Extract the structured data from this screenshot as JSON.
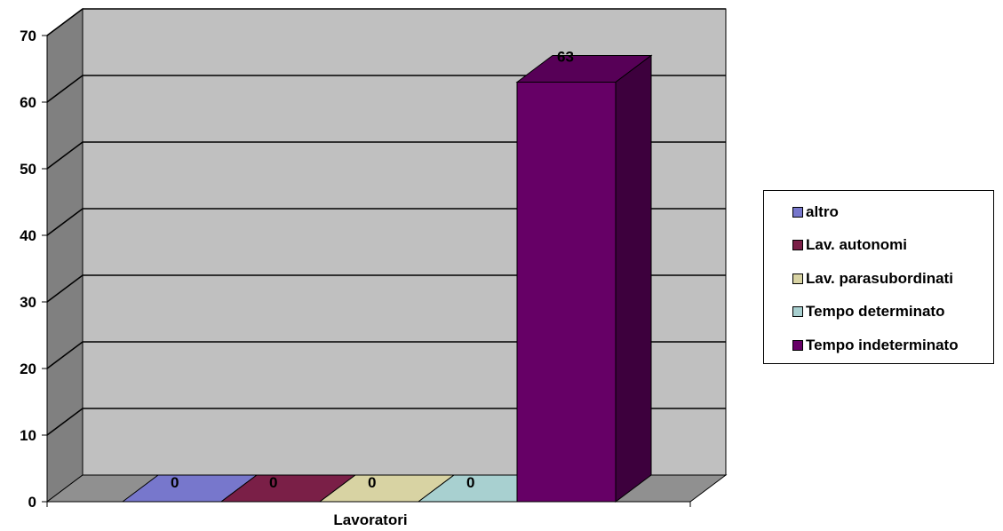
{
  "chart_data": {
    "type": "bar",
    "categories": [
      "Lavoratori"
    ],
    "xlabel": "Lavoratori",
    "ylabel": "",
    "title": "",
    "ylim": [
      0,
      70
    ],
    "yticks": [
      0,
      10,
      20,
      30,
      40,
      50,
      60,
      70
    ],
    "grid": true,
    "legend_position": "right",
    "series": [
      {
        "name": "altro",
        "values": [
          0
        ],
        "color": "#7777cc",
        "data_label": "0"
      },
      {
        "name": "Lav. autonomi",
        "values": [
          0
        ],
        "color": "#7a1f47",
        "data_label": "0"
      },
      {
        "name": "Lav. parasubordinati",
        "values": [
          0
        ],
        "color": "#d8d3a3",
        "data_label": "0"
      },
      {
        "name": "Tempo determinato",
        "values": [
          0
        ],
        "color": "#a8d0d0",
        "data_label": "0"
      },
      {
        "name": "Tempo indeterminato",
        "values": [
          63
        ],
        "color": "#660066",
        "data_label": "63"
      }
    ],
    "colors": {
      "plot_back_wall": "#c0c0c0",
      "plot_side_wall": "#808080",
      "plot_floor": "#909090"
    }
  }
}
